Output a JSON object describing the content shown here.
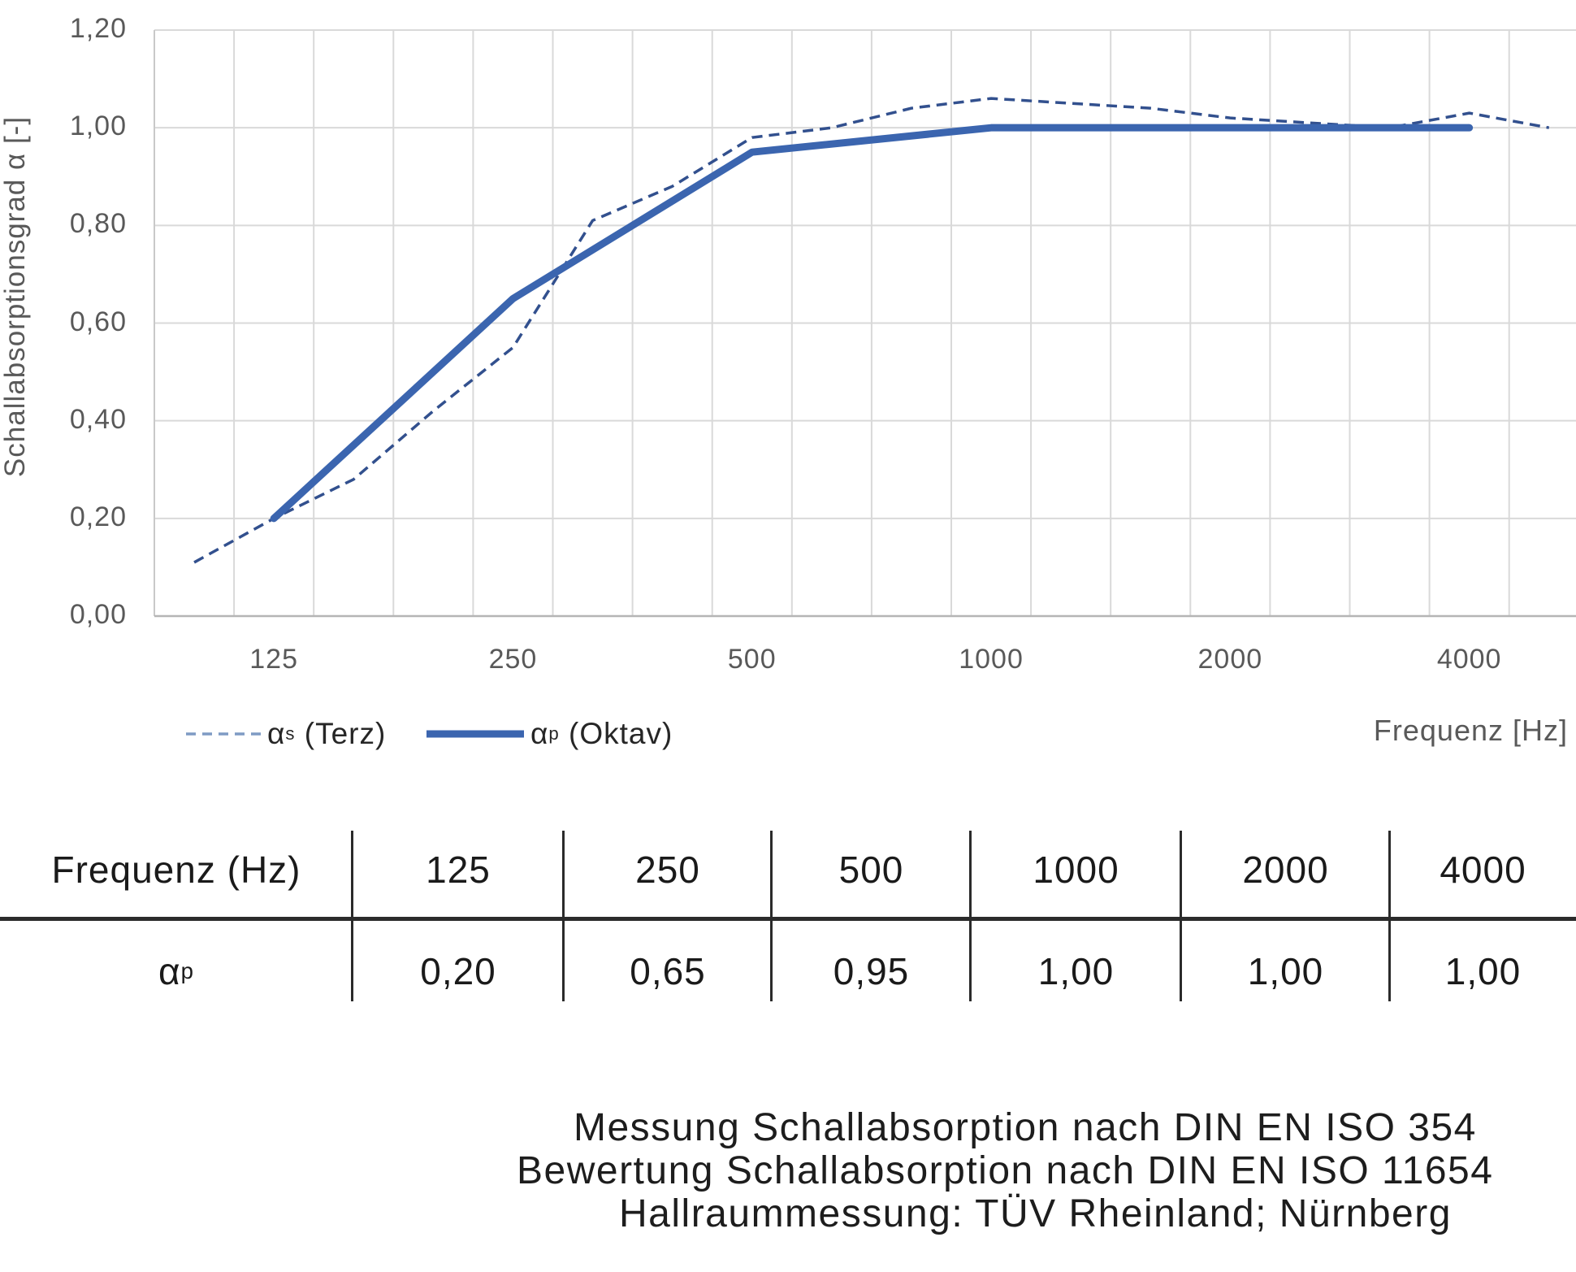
{
  "colors": {
    "series_solid": "#3B65AF",
    "series_dashed": "#32508E",
    "legend_dash_sample": "#7F9BC4",
    "gridline": "#d9d9d9",
    "axis_line": "#b5b5b5",
    "axis_text": "#595959",
    "table_line": "#2b2b2b",
    "text": "#1d1d1d"
  },
  "y_axis": {
    "title": "Schallabsorptionsgrad α [-]"
  },
  "x_axis": {
    "title": "Frequenz [Hz]"
  },
  "legend": {
    "items": [
      {
        "symbol": "α",
        "sub": "s",
        "label": " (Terz)"
      },
      {
        "symbol": "α",
        "sub": "p",
        "label": " (Oktav)"
      }
    ]
  },
  "table": {
    "headers": [
      "Frequenz (Hz)",
      "125",
      "250",
      "500",
      "1000",
      "2000",
      "4000"
    ],
    "row_label": {
      "symbol": "α",
      "sub": "p"
    },
    "values": [
      "0,20",
      "0,65",
      "0,95",
      "1,00",
      "1,00",
      "1,00"
    ]
  },
  "footnotes": [
    "Messung Schallabsorption nach DIN EN ISO 354",
    "Bewertung Schallabsorption nach DIN EN ISO 11654",
    "Hallraummessung: TÜV Rheinland; Nürnberg"
  ],
  "chart_data": {
    "type": "line",
    "title": "",
    "xlabel": "Frequenz [Hz]",
    "ylabel": "Schallabsorptionsgrad α [-]",
    "ylim": [
      0.0,
      1.2
    ],
    "grid": true,
    "legend_position": "bottom-left",
    "y_ticks": [
      "0,00",
      "0,20",
      "0,40",
      "0,60",
      "0,80",
      "1,00",
      "1,20"
    ],
    "x_ticks": [
      "125",
      "250",
      "500",
      "1000",
      "2000",
      "4000"
    ],
    "categories": [
      100,
      125,
      160,
      200,
      250,
      315,
      400,
      500,
      630,
      800,
      1000,
      1250,
      1600,
      2000,
      2500,
      3150,
      4000,
      5000
    ],
    "series": [
      {
        "name": "αs (Terz)",
        "style": "dashed",
        "color": "#32508E",
        "x": [
          100,
          125,
          160,
          200,
          250,
          315,
          400,
          500,
          630,
          800,
          1000,
          1250,
          1600,
          2000,
          2500,
          3150,
          4000,
          5000
        ],
        "values": [
          0.11,
          0.2,
          0.28,
          0.42,
          0.55,
          0.81,
          0.88,
          0.98,
          1.0,
          1.04,
          1.06,
          1.05,
          1.04,
          1.02,
          1.01,
          1.0,
          1.03,
          1.0
        ]
      },
      {
        "name": "αp (Oktav)",
        "style": "solid",
        "color": "#3B65AF",
        "x": [
          125,
          250,
          500,
          1000,
          2000,
          4000
        ],
        "values": [
          0.2,
          0.65,
          0.95,
          1.0,
          1.0,
          1.0
        ]
      }
    ]
  }
}
